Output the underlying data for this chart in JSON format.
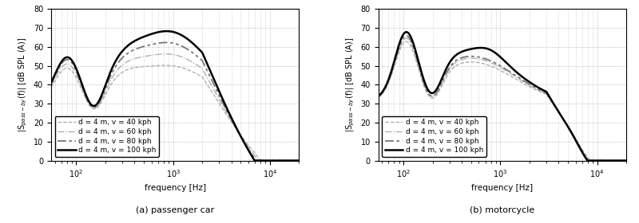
{
  "fig_width": 8.0,
  "fig_height": 2.8,
  "dpi": 100,
  "xlim": [
    55,
    20000
  ],
  "ylim": [
    0,
    80
  ],
  "yticks": [
    0,
    10,
    20,
    30,
    40,
    50,
    60,
    70,
    80
  ],
  "xlabel": "frequency [Hz]",
  "ylabel": "|S$_{pass-by}$(f)| [dB SPL (A)]",
  "subtitle_a": "(a) passenger car",
  "subtitle_b": "(b) motorcycle",
  "legend_labels": [
    "d = 4 m, v = 40 kph",
    "d = 4 m, v = 60 kph",
    "d = 4 m, v = 80 kph",
    "d = 4 m, v = 100 kph"
  ],
  "background_color": "#ffffff",
  "grid_color": "#aaaaaa"
}
